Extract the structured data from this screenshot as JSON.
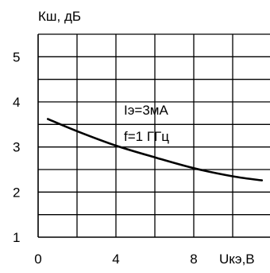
{
  "chart_data": {
    "type": "line",
    "ylabel": "Кш, дБ",
    "xlabel": "Uкэ,В",
    "xlim": [
      0,
      12
    ],
    "ylim": [
      1,
      5.5
    ],
    "grid": true,
    "x_ticks": [
      {
        "value": 0,
        "label": "0"
      },
      {
        "value": 4,
        "label": "4"
      },
      {
        "value": 8,
        "label": "8"
      }
    ],
    "y_ticks": [
      {
        "value": 1,
        "label": "1"
      },
      {
        "value": 2,
        "label": "2"
      },
      {
        "value": 3,
        "label": "3"
      },
      {
        "value": 4,
        "label": "4"
      },
      {
        "value": 5,
        "label": "5"
      }
    ],
    "series": [
      {
        "x": [
          0.5,
          2,
          4,
          6,
          8,
          10,
          11.5
        ],
        "y": [
          3.62,
          3.35,
          3.03,
          2.77,
          2.53,
          2.35,
          2.26
        ]
      }
    ],
    "annotations": [
      "Iэ=3мА",
      "f=1 ГГц"
    ]
  }
}
